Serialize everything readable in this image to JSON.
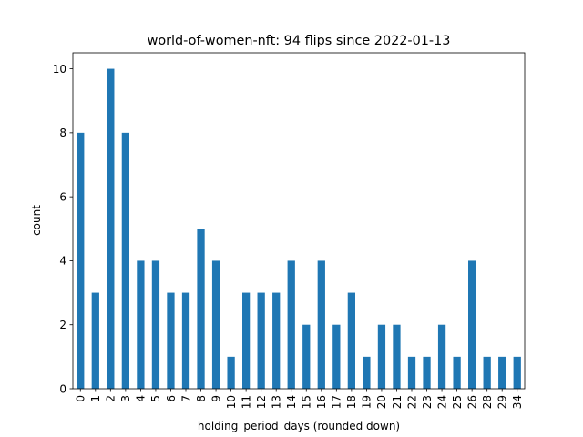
{
  "chart_data": {
    "type": "bar",
    "title": "world-of-women-nft: 94 flips since 2022-01-13",
    "xlabel": "holding_period_days (rounded down)",
    "ylabel": "count",
    "categories": [
      "0",
      "1",
      "2",
      "3",
      "4",
      "5",
      "6",
      "7",
      "8",
      "9",
      "10",
      "11",
      "12",
      "13",
      "14",
      "15",
      "16",
      "17",
      "18",
      "19",
      "20",
      "21",
      "22",
      "23",
      "24",
      "25",
      "26",
      "28",
      "29",
      "34"
    ],
    "values": [
      8,
      3,
      10,
      8,
      4,
      4,
      3,
      3,
      5,
      4,
      1,
      3,
      3,
      3,
      4,
      2,
      4,
      2,
      3,
      1,
      2,
      2,
      1,
      1,
      2,
      1,
      4,
      1,
      1,
      1
    ],
    "yticks": [
      0,
      2,
      4,
      6,
      8,
      10
    ],
    "ylim": [
      0,
      10.5
    ],
    "grid": false,
    "bar_color": "#1f77b4"
  }
}
